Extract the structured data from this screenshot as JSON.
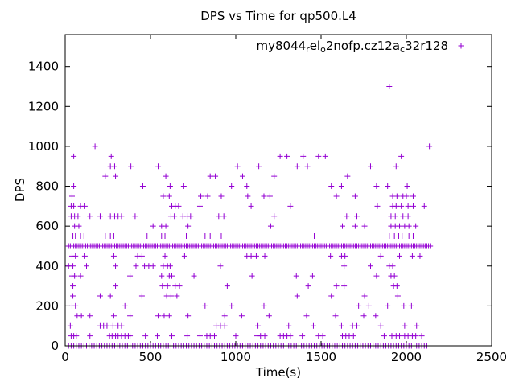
{
  "title": "DPS vs Time for qp500.L4",
  "xlabel": "Time(s)",
  "ylabel": "DPS",
  "legend": {
    "label_plain": "my8044_rel_o2nofp.cz12a_c32r128",
    "parts": [
      {
        "t": "my8044"
      },
      {
        "sub": "r"
      },
      {
        "t": "el"
      },
      {
        "sub": "o"
      },
      {
        "t": "2nofp.cz12a"
      },
      {
        "sub": "c"
      },
      {
        "t": "32r128"
      }
    ],
    "marker": "plus"
  },
  "colors": {
    "series": "#9400D3",
    "axis": "#000000",
    "background": "#ffffff"
  },
  "chart_data": {
    "type": "scatter",
    "title": "DPS vs Time for qp500.L4",
    "xlabel": "Time(s)",
    "ylabel": "DPS",
    "xlim": [
      0,
      2500
    ],
    "ylim": [
      0,
      1560
    ],
    "xticks": [
      0,
      500,
      1000,
      1500,
      2000,
      2500
    ],
    "yticks": [
      0,
      200,
      400,
      600,
      800,
      1000,
      1200,
      1400
    ],
    "grid": false,
    "legend_position": "top-right-inside",
    "series": [
      {
        "name": "my8044_rel_o2nofp.cz12a_c32r128",
        "marker": "plus",
        "color": "#9400D3",
        "levels": [
          {
            "dps": 1300,
            "t": [
              1900
            ]
          },
          {
            "dps": 1000,
            "t": [
              175,
              2135
            ]
          },
          {
            "dps": 950,
            "t": [
              50,
              270,
              1260,
              1300,
              1395,
              1485,
              1525,
              1970
            ]
          },
          {
            "dps": 900,
            "t": [
              265,
              290,
              385,
              545,
              1010,
              1135,
              1360,
              1420,
              1790,
              1940
            ]
          },
          {
            "dps": 850,
            "t": [
              235,
              295,
              590,
              850,
              880,
              1040,
              1225,
              1655
            ]
          },
          {
            "dps": 800,
            "t": [
              50,
              455,
              615,
              695,
              975,
              1065,
              1560,
              1620,
              1825,
              1890,
              2005
            ]
          },
          {
            "dps": 750,
            "t": [
              40,
              575,
              610,
              795,
              835,
              915,
              1070,
              1165,
              1200,
              1590,
              1700,
              1920,
              1945,
              1980,
              2000,
              2040
            ]
          },
          {
            "dps": 700,
            "t": [
              35,
              50,
              90,
              115,
              625,
              645,
              665,
              790,
              1090,
              1320,
              1830,
              1920,
              1940,
              1970,
              2010,
              2040,
              2105
            ]
          },
          {
            "dps": 650,
            "t": [
              35,
              55,
              75,
              145,
              205,
              265,
              290,
              310,
              330,
              410,
              620,
              640,
              690,
              715,
              735,
              900,
              930,
              1225,
              1650,
              1710,
              1910,
              1935,
              1980,
              2010
            ]
          },
          {
            "dps": 600,
            "t": [
              55,
              80,
              515,
              565,
              590,
              720,
              1205,
              1625,
              1700,
              1755,
              1910,
              1935,
              1960,
              1990,
              2015,
              2055
            ]
          },
          {
            "dps": 550,
            "t": [
              45,
              60,
              90,
              110,
              235,
              265,
              285,
              480,
              565,
              585,
              710,
              820,
              850,
              915,
              1460,
              1900,
              1930,
              1955,
              1975,
              2015,
              2040
            ]
          },
          {
            "dps": 450,
            "t": [
              40,
              60,
              115,
              285,
              425,
              450,
              585,
              700,
              1065,
              1090,
              1120,
              1170,
              1555,
              1620,
              1640,
              1850,
              1960,
              2035,
              2080
            ]
          },
          {
            "dps": 400,
            "t": [
              20,
              45,
              125,
              295,
              415,
              465,
              490,
              515,
              575,
              600,
              615,
              910,
              1635,
              1790,
              1900,
              1920
            ]
          },
          {
            "dps": 350,
            "t": [
              40,
              55,
              90,
              380,
              565,
              610,
              625,
              755,
              1095,
              1355,
              1450,
              1825,
              1910,
              1930
            ]
          },
          {
            "dps": 300,
            "t": [
              45,
              295,
              570,
              600,
              645,
              670,
              950,
              1425,
              1590,
              1635,
              1925,
              1945
            ]
          },
          {
            "dps": 250,
            "t": [
              45,
              205,
              265,
              450,
              595,
              620,
              655,
              1360,
              1560,
              1755,
              1950
            ]
          },
          {
            "dps": 200,
            "t": [
              40,
              60,
              350,
              820,
              975,
              1165,
              1720,
              1780,
              1890,
              1985,
              2030
            ]
          },
          {
            "dps": 150,
            "t": [
              70,
              95,
              145,
              285,
              380,
              545,
              580,
              610,
              720,
              935,
              1035,
              1195,
              1415,
              1585,
              1750,
              1820
            ]
          },
          {
            "dps": 100,
            "t": [
              30,
              205,
              225,
              245,
              280,
              310,
              330,
              885,
              910,
              935,
              1130,
              1310,
              1455,
              1620,
              1685,
              1710,
              1850,
              1990,
              2060
            ]
          },
          {
            "dps": 50,
            "t": [
              35,
              50,
              65,
              145,
              260,
              275,
              295,
              310,
              330,
              350,
              370,
              380,
              470,
              540,
              625,
              715,
              790,
              830,
              850,
              875,
              1000,
              1125,
              1145,
              1170,
              1260,
              1280,
              1300,
              1320,
              1390,
              1485,
              1510,
              1625,
              1645,
              1665,
              1690,
              1870,
              1915,
              1940,
              1960,
              1990,
              2010,
              2035,
              2055,
              2090
            ]
          }
        ],
        "dense_runs": [
          {
            "dps": 500,
            "t_start": 20,
            "t_end": 2145,
            "t_step": 10
          },
          {
            "dps": 0,
            "t_start": 20,
            "t_end": 2130,
            "t_step": 15
          }
        ]
      }
    ]
  }
}
